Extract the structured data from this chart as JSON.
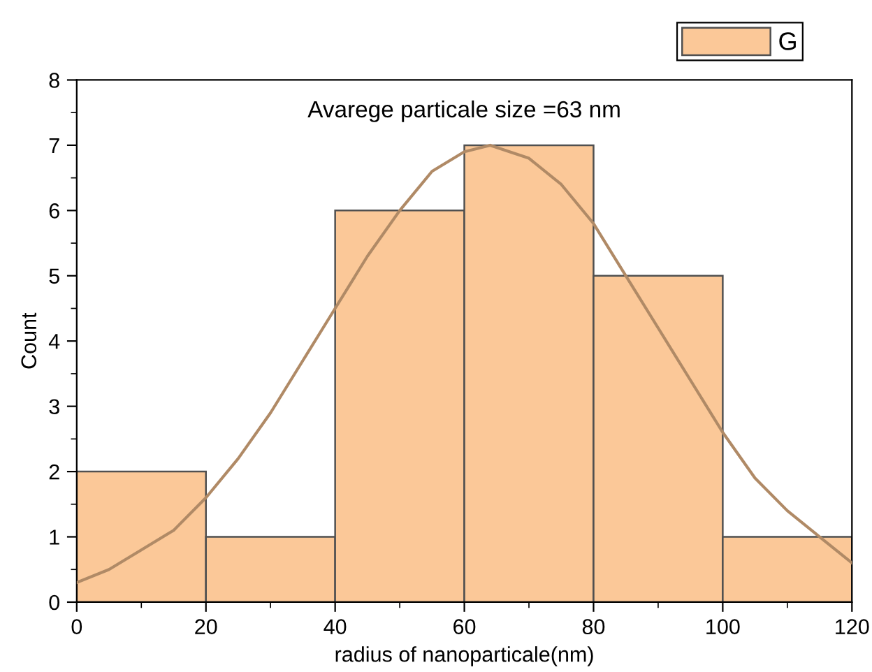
{
  "chart_data": {
    "type": "histogram",
    "xlabel": "radius of nanoparticale(nm)",
    "ylabel": "Count",
    "annotations": [
      "Avarege particale size =63 nm"
    ],
    "bins": [
      0,
      20,
      40,
      60,
      80,
      100,
      120
    ],
    "series": [
      {
        "name": "G",
        "color": "#fbc898",
        "values": [
          2,
          1,
          6,
          7,
          5,
          1
        ]
      },
      {
        "type": "line",
        "color": "#b08a66",
        "x": [
          0,
          5,
          10,
          15,
          20,
          25,
          30,
          35,
          40,
          45,
          50,
          55,
          60,
          64,
          70,
          75,
          80,
          85,
          90,
          95,
          100,
          105,
          110,
          115,
          120
        ],
        "values": [
          0.3,
          0.5,
          0.8,
          1.1,
          1.6,
          2.2,
          2.9,
          3.7,
          4.5,
          5.3,
          6.0,
          6.6,
          6.9,
          7.0,
          6.8,
          6.4,
          5.8,
          5.0,
          4.2,
          3.4,
          2.6,
          1.9,
          1.4,
          1.0,
          0.6
        ]
      }
    ],
    "xlim": [
      0,
      120
    ],
    "ylim": [
      0,
      8
    ],
    "xticks": [
      0,
      20,
      40,
      60,
      80,
      100,
      120
    ],
    "yticks": [
      0,
      1,
      2,
      3,
      4,
      5,
      6,
      7,
      8
    ],
    "grid": false,
    "legend": "top right"
  }
}
